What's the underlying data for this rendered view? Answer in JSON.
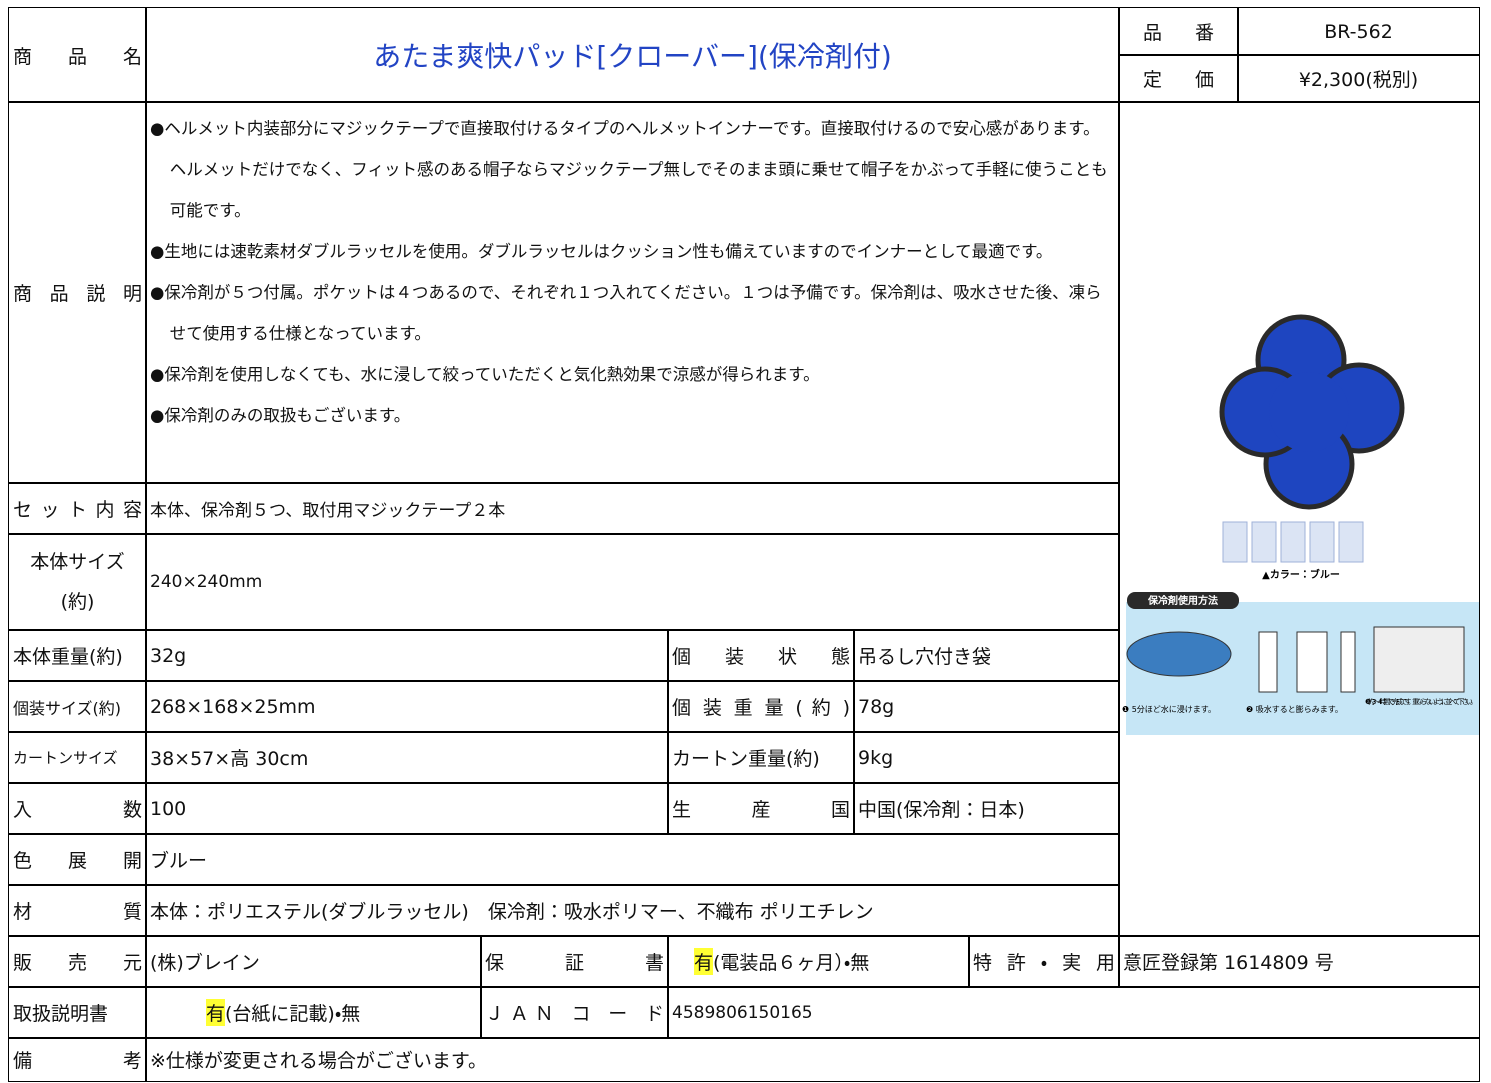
{
  "header": {
    "product_name_label": "商 品 名",
    "product_name": "あたま爽快パッド[クローバー](保冷剤付)",
    "code_label": "品 番",
    "code": "BR-562",
    "price_label": "定 価",
    "price": "¥2,300(税別)"
  },
  "description": {
    "label": "商 品 説 明",
    "items": [
      "●ヘルメット内装部分にマジックテープで直接取付けるタイプのヘルメットインナーです。直接取付けるので安心感があります。ヘルメットだけでなく、フィット感のある帽子ならマジックテープ無しでそのまま頭に乗せて帽子をかぶって手軽に使うことも可能です。",
      "●生地には速乾素材ダブルラッセルを使用。ダブルラッセルはクッション性も備えていますのでインナーとして最適です。",
      "●保冷剤が５つ付属。ポケットは４つあるので、それぞれ１つ入れてください。１つは予備です。保冷剤は、吸水させた後、凍らせて使用する仕様となっています。",
      "●保冷剤を使用しなくても、水に浸して絞っていただくと気化熱効果で涼感が得られます。",
      "●保冷剤のみの取扱もございます。"
    ]
  },
  "specs": {
    "set_label": "セット内容",
    "set": "本体、保冷剤５つ、取付用マジックテープ２本",
    "size_label": [
      "本体サイズ",
      "(約)"
    ],
    "size": "240×240mm",
    "weight_label": "本体重量(約)",
    "weight": "32g",
    "package_label": "個 装 状 態",
    "package": "吊るし穴付き袋",
    "pack_size_label": "個装サイズ(約)",
    "pack_size": "268×168×25mm",
    "pack_weight_label": "個 装 重 量 ( 約 )",
    "pack_weight": "78g",
    "carton_size_label": "カートンサイズ",
    "carton_size": "38×57×高 30cm",
    "carton_weight_label": "カートン重量(約)",
    "carton_weight": "9kg",
    "quantity_label": "入 数",
    "quantity": "100",
    "origin_label": "生 産 国",
    "origin": "中国(保冷剤：日本)",
    "colors_label": "色 展 開",
    "colors": "ブルー",
    "material_label": "材 質",
    "material": "本体：ポリエステル(ダブルラッセル)　保冷剤：吸水ポリマー、不織布 ポリエチレン",
    "seller_label": "販 売 元",
    "seller": "(株)ブレイン",
    "warranty_label": "保 証 書",
    "warranty_mark": "有",
    "warranty_rest": "(電装品６ヶ月）・無",
    "patent_label": "特 許 ・ 実 用",
    "patent": "意匠登録第 1614809 号",
    "manual_label": "取扱説明書",
    "manual_mark": "有",
    "manual_rest": "(台紙に記載)・無",
    "jan_label": "ＪＡＮ コ ー ド",
    "jan": "4589806150165",
    "notes_label": "備 考",
    "notes": "※仕様が変更される場合がございます。"
  },
  "image": {
    "color_caption": "▲カラー：ブルー",
    "usage_title": "保冷剤使用方法",
    "steps": [
      "❶ 5分ほど水に浸けます。",
      "❷ 吸水すると膨らみます。",
      "❸ 約3〜4時間で完成です。重ならないように並べて下さい。"
    ]
  }
}
